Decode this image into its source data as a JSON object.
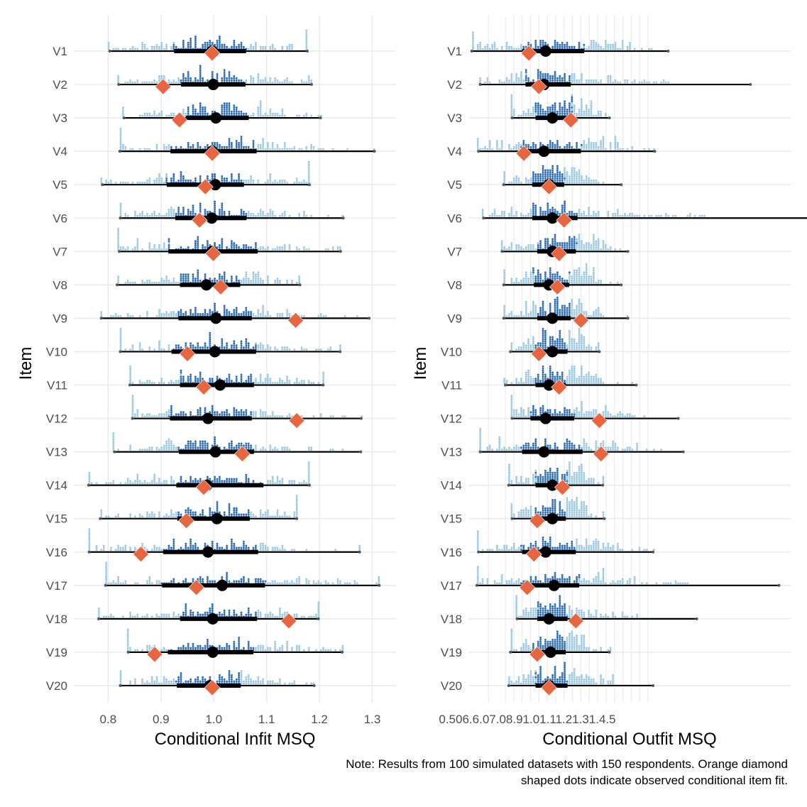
{
  "caption": {
    "line1": "Note: Results from 100 simulated datasets with 150 respondents. Orange diamond",
    "line2": "shaped dots indicate observed conditional item fit."
  },
  "colors": {
    "observed_marker": "#E7653F",
    "dots_central": "#2D6DB5",
    "dots_outer": "#9ECAE1",
    "interval": "#000000",
    "grid": "#EBEBEB",
    "minmax_point": "#555555"
  },
  "chart_data": [
    {
      "type": "interval-dotplot",
      "panel": "infit",
      "title": "",
      "xlabel": "Conditional Infit MSQ",
      "ylabel": "Item",
      "xlim": [
        0.735,
        1.345
      ],
      "xticks": [
        {
          "value": 0.8,
          "label": "0.8"
        },
        {
          "value": 0.9,
          "label": "0.9"
        },
        {
          "value": 1.0,
          "label": "1.0"
        },
        {
          "value": 1.1,
          "label": "1.1"
        },
        {
          "value": 1.2,
          "label": "1.2"
        },
        {
          "value": 1.3,
          "label": "1.3"
        }
      ],
      "grid": true,
      "legend": "none",
      "items": [
        {
          "label": "V1",
          "min": 0.803,
          "q_lo": 0.925,
          "median": 0.997,
          "q_hi": 1.061,
          "max": 1.177,
          "observed": 0.997
        },
        {
          "label": "V2",
          "min": 0.82,
          "q_lo": 0.938,
          "median": 0.999,
          "q_hi": 1.06,
          "max": 1.185,
          "observed": 0.904
        },
        {
          "label": "V3",
          "min": 0.83,
          "q_lo": 0.947,
          "median": 1.004,
          "q_hi": 1.066,
          "max": 1.202,
          "observed": 0.935
        },
        {
          "label": "V4",
          "min": 0.822,
          "q_lo": 0.918,
          "median": 0.997,
          "q_hi": 1.081,
          "max": 1.304,
          "observed": 0.997
        },
        {
          "label": "V5",
          "min": 0.789,
          "q_lo": 0.911,
          "median": 1.003,
          "q_hi": 1.057,
          "max": 1.181,
          "observed": 0.984
        },
        {
          "label": "V6",
          "min": 0.823,
          "q_lo": 0.927,
          "median": 0.996,
          "q_hi": 1.062,
          "max": 1.245,
          "observed": 0.973
        },
        {
          "label": "V7",
          "min": 0.821,
          "q_lo": 0.914,
          "median": 0.997,
          "q_hi": 1.083,
          "max": 1.24,
          "observed": 0.999
        },
        {
          "label": "V8",
          "min": 0.817,
          "q_lo": 0.936,
          "median": 0.986,
          "q_hi": 1.05,
          "max": 1.163,
          "observed": 1.013
        },
        {
          "label": "V9",
          "min": 0.787,
          "q_lo": 0.933,
          "median": 1.004,
          "q_hi": 1.072,
          "max": 1.294,
          "observed": 1.155
        },
        {
          "label": "V10",
          "min": 0.823,
          "q_lo": 0.92,
          "median": 1.002,
          "q_hi": 1.08,
          "max": 1.239,
          "observed": 0.95
        },
        {
          "label": "V11",
          "min": 0.841,
          "q_lo": 0.936,
          "median": 1.012,
          "q_hi": 1.076,
          "max": 1.207,
          "observed": 0.981
        },
        {
          "label": "V12",
          "min": 0.846,
          "q_lo": 0.917,
          "median": 0.989,
          "q_hi": 1.072,
          "max": 1.279,
          "observed": 1.157
        },
        {
          "label": "V13",
          "min": 0.812,
          "q_lo": 0.934,
          "median": 1.003,
          "q_hi": 1.076,
          "max": 1.278,
          "observed": 1.054
        },
        {
          "label": "V14",
          "min": 0.763,
          "q_lo": 0.929,
          "median": 0.987,
          "q_hi": 1.094,
          "max": 1.181,
          "observed": 0.981
        },
        {
          "label": "V15",
          "min": 0.785,
          "q_lo": 0.931,
          "median": 1.006,
          "q_hi": 1.068,
          "max": 1.157,
          "observed": 0.948
        },
        {
          "label": "V16",
          "min": 0.764,
          "q_lo": 0.904,
          "median": 0.989,
          "q_hi": 1.084,
          "max": 1.276,
          "observed": 0.862
        },
        {
          "label": "V17",
          "min": 0.795,
          "q_lo": 0.902,
          "median": 1.016,
          "q_hi": 1.097,
          "max": 1.313,
          "observed": 0.967
        },
        {
          "label": "V18",
          "min": 0.782,
          "q_lo": 0.936,
          "median": 0.998,
          "q_hi": 1.082,
          "max": 1.198,
          "observed": 1.142
        },
        {
          "label": "V19",
          "min": 0.838,
          "q_lo": 0.913,
          "median": 0.998,
          "q_hi": 1.075,
          "max": 1.243,
          "observed": 0.888
        },
        {
          "label": "V20",
          "min": 0.823,
          "q_lo": 0.93,
          "median": 0.993,
          "q_hi": 1.051,
          "max": 1.19,
          "observed": 0.997
        }
      ]
    },
    {
      "type": "interval-dotplot",
      "panel": "outfit",
      "title": "",
      "xlabel": "Conditional Outfit MSQ",
      "ylabel": "Item",
      "xlim": [
        0.38,
        2.3
      ],
      "xtick_label_text": "0.506.6.07.08.91.01.11.21.31.4.5",
      "xticks_drawn_as_overlapping": true,
      "xtick_values": [
        0.5,
        0.6,
        0.65,
        0.7,
        0.75,
        0.8,
        0.85,
        0.9,
        0.95,
        1.0,
        1.05,
        1.1,
        1.15,
        1.2,
        1.25,
        1.3,
        1.35,
        1.4,
        1.45
      ],
      "grid": true,
      "legend": "none",
      "items": [
        {
          "label": "V1",
          "min": 0.4,
          "q_lo": 0.7,
          "median": 0.84,
          "q_hi": 1.07,
          "max": 1.57,
          "observed": 0.74
        },
        {
          "label": "V2",
          "min": 0.45,
          "q_lo": 0.72,
          "median": 0.83,
          "q_hi": 0.99,
          "max": 2.06,
          "observed": 0.8
        },
        {
          "label": "V3",
          "min": 0.64,
          "q_lo": 0.78,
          "median": 0.88,
          "q_hi": 1.0,
          "max": 1.22,
          "observed": 0.99
        },
        {
          "label": "V4",
          "min": 0.44,
          "q_lo": 0.69,
          "median": 0.83,
          "q_hi": 1.05,
          "max": 1.49,
          "observed": 0.71
        },
        {
          "label": "V5",
          "min": 0.59,
          "q_lo": 0.76,
          "median": 0.86,
          "q_hi": 0.95,
          "max": 1.29,
          "observed": 0.86
        },
        {
          "label": "V6",
          "min": 0.47,
          "q_lo": 0.76,
          "median": 0.88,
          "q_hi": 1.03,
          "max": 2.42,
          "observed": 0.95
        },
        {
          "label": "V7",
          "min": 0.58,
          "q_lo": 0.79,
          "median": 0.88,
          "q_hi": 1.02,
          "max": 1.33,
          "observed": 0.92
        },
        {
          "label": "V8",
          "min": 0.59,
          "q_lo": 0.77,
          "median": 0.86,
          "q_hi": 0.98,
          "max": 1.29,
          "observed": 0.91
        },
        {
          "label": "V9",
          "min": 0.59,
          "q_lo": 0.79,
          "median": 0.88,
          "q_hi": 0.99,
          "max": 1.33,
          "observed": 1.05
        },
        {
          "label": "V10",
          "min": 0.63,
          "q_lo": 0.78,
          "median": 0.88,
          "q_hi": 0.97,
          "max": 1.16,
          "observed": 0.8
        },
        {
          "label": "V11",
          "min": 0.6,
          "q_lo": 0.78,
          "median": 0.86,
          "q_hi": 0.96,
          "max": 1.38,
          "observed": 0.92
        },
        {
          "label": "V12",
          "min": 0.64,
          "q_lo": 0.75,
          "median": 0.84,
          "q_hi": 1.01,
          "max": 1.63,
          "observed": 1.16
        },
        {
          "label": "V13",
          "min": 0.45,
          "q_lo": 0.7,
          "median": 0.83,
          "q_hi": 1.06,
          "max": 1.66,
          "observed": 1.17
        },
        {
          "label": "V14",
          "min": 0.62,
          "q_lo": 0.78,
          "median": 0.88,
          "q_hi": 0.97,
          "max": 1.18,
          "observed": 0.94
        },
        {
          "label": "V15",
          "min": 0.64,
          "q_lo": 0.76,
          "median": 0.88,
          "q_hi": 0.96,
          "max": 1.19,
          "observed": 0.79
        },
        {
          "label": "V16",
          "min": 0.44,
          "q_lo": 0.7,
          "median": 0.84,
          "q_hi": 1.02,
          "max": 1.48,
          "observed": 0.77
        },
        {
          "label": "V17",
          "min": 0.43,
          "q_lo": 0.7,
          "median": 0.89,
          "q_hi": 1.04,
          "max": 2.23,
          "observed": 0.73
        },
        {
          "label": "V18",
          "min": 0.67,
          "q_lo": 0.79,
          "median": 0.86,
          "q_hi": 0.97,
          "max": 1.74,
          "observed": 1.02
        },
        {
          "label": "V19",
          "min": 0.63,
          "q_lo": 0.76,
          "median": 0.87,
          "q_hi": 0.96,
          "max": 1.22,
          "observed": 0.79
        },
        {
          "label": "V20",
          "min": 0.62,
          "q_lo": 0.78,
          "median": 0.86,
          "q_hi": 0.97,
          "max": 1.48,
          "observed": 0.86
        }
      ]
    }
  ]
}
